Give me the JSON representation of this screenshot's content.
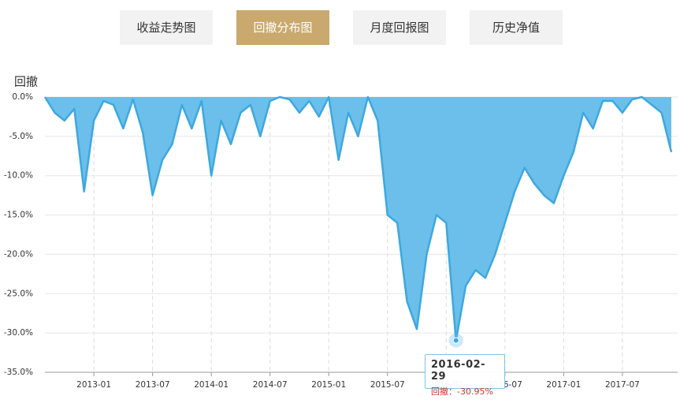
{
  "tabs": [
    "收益走势图",
    "回撤分布图",
    "月度回报图",
    "历史净值"
  ],
  "active_tab": 1,
  "chart_data": {
    "type": "area",
    "y_label": "回撤",
    "color": "#6bbfea",
    "line_color": "#3da8e0",
    "grid": true,
    "xlim": [
      "2012-08",
      "2017-12"
    ],
    "ylim": [
      -35,
      0
    ],
    "yticks": [
      {
        "value": 0,
        "label": "0.0%"
      },
      {
        "value": -5,
        "label": "-5.0%"
      },
      {
        "value": -10,
        "label": "-10.0%"
      },
      {
        "value": -15,
        "label": "-15.0%"
      },
      {
        "value": -20,
        "label": "-20.0%"
      },
      {
        "value": -25,
        "label": "-25.0%"
      },
      {
        "value": -30,
        "label": "-30.0%"
      },
      {
        "value": -35,
        "label": "-35.0%"
      }
    ],
    "xticks": [
      "2013-01",
      "2013-07",
      "2014-01",
      "2014-07",
      "2015-01",
      "2015-07",
      "2016-01",
      "2016-07",
      "2017-01",
      "2017-07"
    ],
    "x": [
      "2012-08",
      "2012-09",
      "2012-10",
      "2012-11",
      "2012-12",
      "2013-01",
      "2013-02",
      "2013-03",
      "2013-04",
      "2013-05",
      "2013-06",
      "2013-07",
      "2013-08",
      "2013-09",
      "2013-10",
      "2013-11",
      "2013-12",
      "2014-01",
      "2014-02",
      "2014-03",
      "2014-04",
      "2014-05",
      "2014-06",
      "2014-07",
      "2014-08",
      "2014-09",
      "2014-10",
      "2014-11",
      "2014-12",
      "2015-01",
      "2015-02",
      "2015-03",
      "2015-04",
      "2015-05",
      "2015-06",
      "2015-07",
      "2015-08",
      "2015-09",
      "2015-10",
      "2015-11",
      "2015-12",
      "2016-01",
      "2016-02",
      "2016-03",
      "2016-04",
      "2016-05",
      "2016-06",
      "2016-07",
      "2016-08",
      "2016-09",
      "2016-10",
      "2016-11",
      "2016-12",
      "2017-01",
      "2017-02",
      "2017-03",
      "2017-04",
      "2017-05",
      "2017-06",
      "2017-07",
      "2017-08",
      "2017-09",
      "2017-10",
      "2017-11",
      "2017-12"
    ],
    "values": [
      0,
      -2,
      -3,
      -1.5,
      -12,
      -3,
      -0.5,
      -1,
      -4,
      -0.3,
      -4.5,
      -12.5,
      -8,
      -6,
      -1,
      -4,
      -0.5,
      -10,
      -3,
      -6,
      -2,
      -1,
      -5,
      -0.5,
      0,
      -0.3,
      -2,
      -0.5,
      -2.5,
      0,
      -8,
      -2,
      -5,
      0,
      -3,
      -15,
      -16,
      -26,
      -29.5,
      -20,
      -15,
      -16,
      -30.95,
      -24,
      -22,
      -23,
      -20,
      -16,
      -12,
      -9,
      -11,
      -12.5,
      -13.5,
      -10,
      -7,
      -2,
      -4,
      -0.5,
      -0.5,
      -2,
      -0.3,
      0,
      -1,
      -2,
      -7
    ],
    "tooltip": {
      "index": 42,
      "title": "2016-02-29",
      "text": "回撤：-30.95%"
    }
  }
}
